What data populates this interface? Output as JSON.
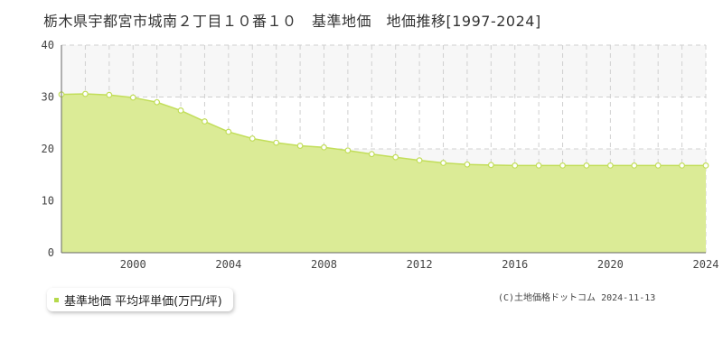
{
  "title": "栃木県宇都宮市城南２丁目１０番１０　基準地価　地価推移[1997-2024]",
  "legend_label": "基準地価 平均坪単価(万円/坪)",
  "copyright": "(C)土地価格ドットコム 2024-11-13",
  "colors": {
    "fill": "#dbeb96",
    "line": "#c2de5a",
    "marker_fill": "#ffffff",
    "band": "#f7f7f7",
    "grid": "#d0d0d0",
    "axis": "#666666",
    "legend_swatch": "#b5d94b"
  },
  "chart_data": {
    "type": "area",
    "x": [
      1997,
      1998,
      1999,
      2000,
      2001,
      2002,
      2003,
      2004,
      2005,
      2006,
      2007,
      2008,
      2009,
      2010,
      2011,
      2012,
      2013,
      2014,
      2015,
      2016,
      2017,
      2018,
      2019,
      2020,
      2021,
      2022,
      2023,
      2024
    ],
    "series": [
      {
        "name": "基準地価 平均坪単価(万円/坪)",
        "values": [
          30.5,
          30.6,
          30.4,
          29.9,
          29.0,
          27.4,
          25.3,
          23.3,
          22.0,
          21.2,
          20.6,
          20.3,
          19.7,
          19.0,
          18.4,
          17.8,
          17.3,
          17.0,
          16.9,
          16.8,
          16.8,
          16.8,
          16.8,
          16.8,
          16.8,
          16.8,
          16.8,
          16.8
        ]
      }
    ],
    "xlim": [
      1997,
      2024
    ],
    "ylim": [
      0,
      40
    ],
    "y_ticks": [
      0,
      10,
      20,
      30,
      40
    ],
    "x_ticks": [
      2000,
      2004,
      2008,
      2012,
      2016,
      2020,
      2024
    ],
    "grid": true
  }
}
